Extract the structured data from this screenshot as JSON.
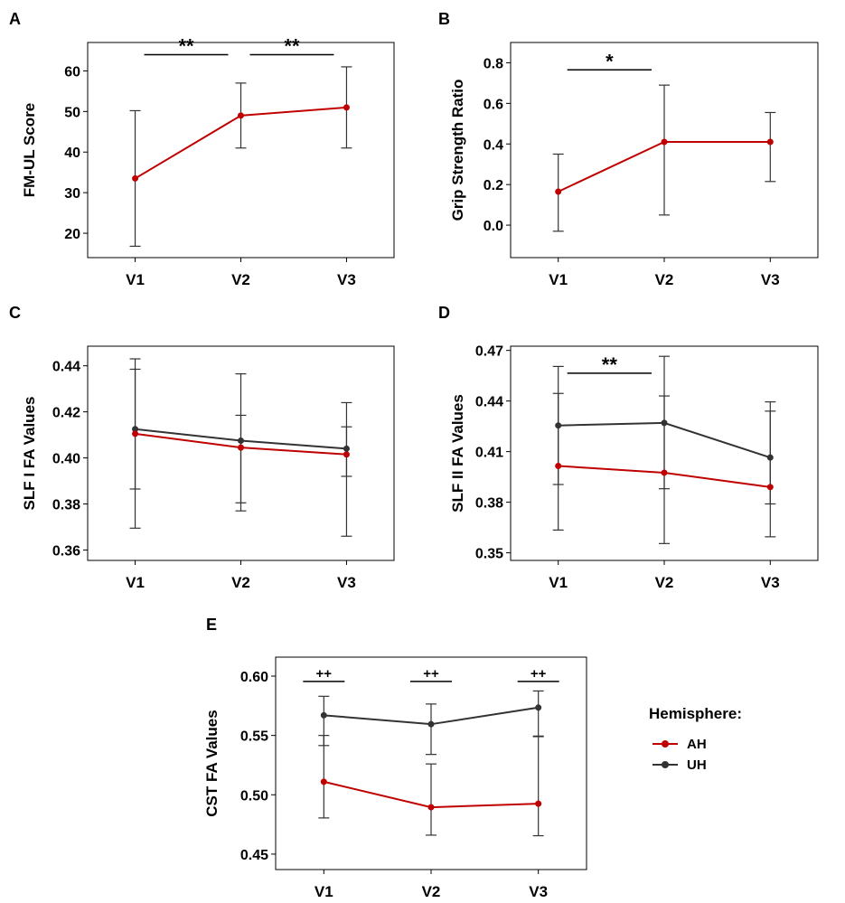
{
  "legend": {
    "title": "Hemisphere:",
    "entries": [
      {
        "name": "AH",
        "color": "#c00000"
      },
      {
        "name": "UH",
        "color": "#333333"
      }
    ]
  },
  "chart_data": [
    {
      "id": "A",
      "type": "line",
      "panel_label": "A",
      "categories": [
        "V1",
        "V2",
        "V3"
      ],
      "ylabel": "FM-UL Score",
      "ylim": [
        14,
        67
      ],
      "yticks": [
        20,
        30,
        40,
        50,
        60
      ],
      "series": [
        {
          "name": "AH",
          "color": "#c00000",
          "values": [
            33.5,
            49,
            51
          ],
          "lower": [
            16.8,
            41,
            41
          ],
          "upper": [
            50.2,
            57,
            61
          ]
        }
      ],
      "significance": [
        {
          "from": "V1",
          "to": "V2",
          "label": "**",
          "y": 64
        },
        {
          "from": "V2",
          "to": "V3",
          "label": "**",
          "y": 64
        }
      ]
    },
    {
      "id": "B",
      "type": "line",
      "panel_label": "B",
      "categories": [
        "V1",
        "V2",
        "V3"
      ],
      "ylabel": "Grip Strength Ratio",
      "ylim": [
        -0.16,
        0.9
      ],
      "yticks": [
        0.0,
        0.2,
        0.4,
        0.6,
        0.8
      ],
      "tick_decimals": 1,
      "series": [
        {
          "name": "AH",
          "color": "#c00000",
          "values": [
            0.165,
            0.41,
            0.41
          ],
          "lower": [
            -0.03,
            0.05,
            0.215
          ],
          "upper": [
            0.35,
            0.69,
            0.555
          ]
        }
      ],
      "significance": [
        {
          "from": "V1",
          "to": "V2",
          "label": "*",
          "y": 0.765
        }
      ]
    },
    {
      "id": "C",
      "type": "line",
      "panel_label": "C",
      "categories": [
        "V1",
        "V2",
        "V3"
      ],
      "ylabel": "SLF I FA Values",
      "ylim": [
        0.3555,
        0.4485
      ],
      "yticks": [
        0.36,
        0.38,
        0.4,
        0.42,
        0.44
      ],
      "tick_decimals": 2,
      "series": [
        {
          "name": "UH",
          "color": "#333333",
          "values": [
            0.4125,
            0.4075,
            0.404
          ],
          "lower": [
            0.3865,
            0.3805,
            0.392
          ],
          "upper": [
            0.4385,
            0.4365,
            0.4135
          ]
        },
        {
          "name": "AH",
          "color": "#c00000",
          "values": [
            0.4105,
            0.4045,
            0.4015
          ],
          "lower": [
            0.3695,
            0.377,
            0.366
          ],
          "upper": [
            0.443,
            0.4185,
            0.424
          ]
        }
      ],
      "significance": []
    },
    {
      "id": "D",
      "type": "line",
      "panel_label": "D",
      "categories": [
        "V1",
        "V2",
        "V3"
      ],
      "ylabel": "SLF II FA Values",
      "ylim": [
        0.3455,
        0.4725
      ],
      "yticks": [
        0.35,
        0.38,
        0.41,
        0.44,
        0.47
      ],
      "tick_decimals": 2,
      "series": [
        {
          "name": "UH",
          "color": "#333333",
          "values": [
            0.4255,
            0.427,
            0.4065
          ],
          "lower": [
            0.3905,
            0.388,
            0.379
          ],
          "upper": [
            0.4605,
            0.4665,
            0.434
          ]
        },
        {
          "name": "AH",
          "color": "#c00000",
          "values": [
            0.4015,
            0.3975,
            0.389
          ],
          "lower": [
            0.3635,
            0.3555,
            0.3595
          ],
          "upper": [
            0.4445,
            0.443,
            0.4395
          ]
        }
      ],
      "significance": [
        {
          "from": "V1",
          "to": "V2",
          "label": "**",
          "y": 0.4565
        }
      ]
    },
    {
      "id": "E",
      "type": "line",
      "panel_label": "E",
      "categories": [
        "V1",
        "V2",
        "V3"
      ],
      "ylabel": "CST FA Values",
      "ylim": [
        0.437,
        0.616
      ],
      "yticks": [
        0.45,
        0.5,
        0.55,
        0.6
      ],
      "tick_decimals": 2,
      "series": [
        {
          "name": "UH",
          "color": "#333333",
          "values": [
            0.567,
            0.5595,
            0.5735
          ],
          "lower": [
            0.5415,
            0.534,
            0.549
          ],
          "upper": [
            0.583,
            0.5765,
            0.5875
          ]
        },
        {
          "name": "AH",
          "color": "#c00000",
          "values": [
            0.511,
            0.4895,
            0.4925
          ],
          "lower": [
            0.4805,
            0.466,
            0.4655
          ],
          "upper": [
            0.55,
            0.526,
            0.5495
          ]
        }
      ],
      "significance": [
        {
          "at": "V1",
          "label": "++",
          "y": 0.5955
        },
        {
          "at": "V2",
          "label": "++",
          "y": 0.5955
        },
        {
          "at": "V3",
          "label": "++",
          "y": 0.5955
        }
      ]
    }
  ]
}
